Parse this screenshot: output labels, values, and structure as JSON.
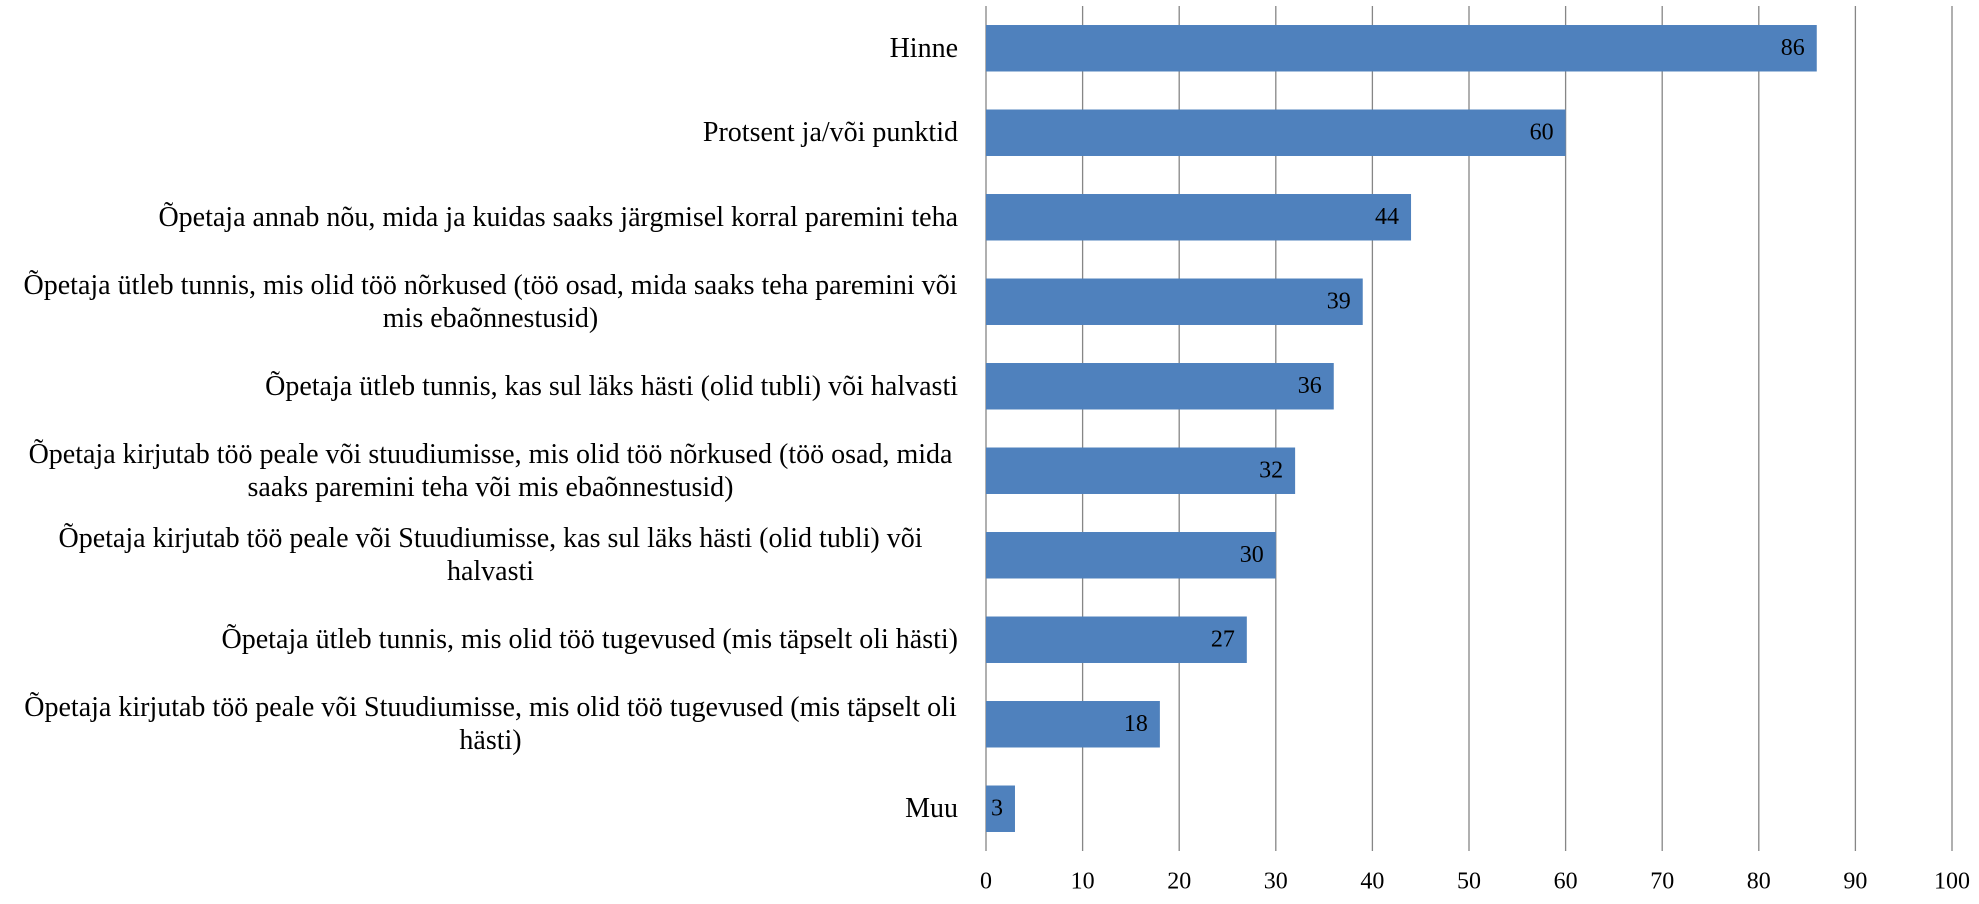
{
  "chart_data": {
    "type": "bar",
    "orientation": "horizontal",
    "categories": [
      "Hinne",
      "Protsent ja/või punktid",
      "Õpetaja annab nõu, mida ja kuidas saaks järgmisel korral paremini teha",
      "Õpetaja ütleb tunnis, mis olid töö nõrkused (töö osad, mida saaks teha paremini või mis ebaõnnestusid)",
      "Õpetaja ütleb tunnis, kas sul läks hästi (olid tubli) või halvasti",
      "Õpetaja kirjutab töö peale või stuudiumisse, mis olid töö nõrkused (töö osad, mida saaks paremini teha või mis ebaõnnestusid)",
      "Õpetaja kirjutab töö peale või Stuudiumisse, kas sul läks hästi (olid tubli) või halvasti",
      "Õpetaja ütleb tunnis, mis olid töö tugevused (mis täpselt oli hästi)",
      "Õpetaja kirjutab töö peale või Stuudiumisse, mis olid töö tugevused (mis täpselt oli hästi)",
      "Muu"
    ],
    "values": [
      86,
      60,
      44,
      39,
      36,
      32,
      30,
      27,
      18,
      3
    ],
    "color": "#4f81bd",
    "xlim": [
      0,
      100
    ],
    "xticks": [
      0,
      10,
      20,
      30,
      40,
      50,
      60,
      70,
      80,
      90,
      100
    ],
    "grid": true
  }
}
